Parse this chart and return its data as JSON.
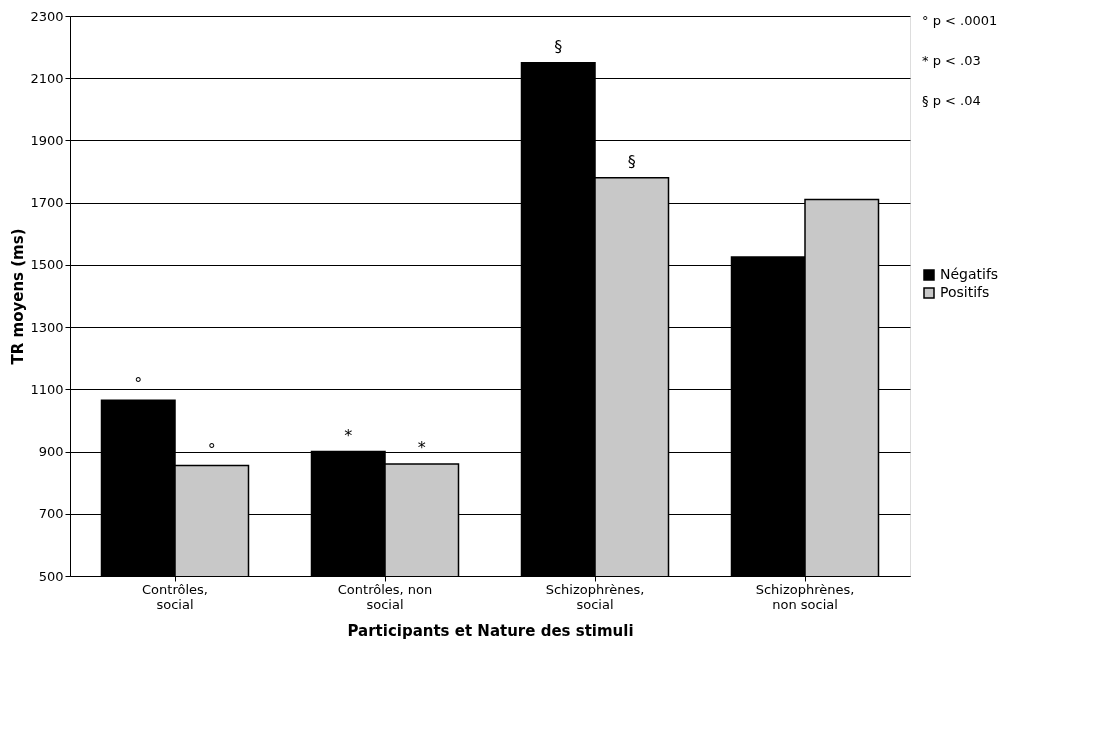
{
  "chart_data": {
    "type": "bar",
    "xlabel": "Participants et Nature des stimuli",
    "ylabel": "TR moyens (ms)",
    "categories": [
      "Contrôles, social",
      "Contrôles, non social",
      "Schizophrènes, social",
      "Schizophrènes, non social"
    ],
    "series": [
      {
        "name": "Négatifs",
        "color": "#000000",
        "values": [
          1065,
          900,
          2150,
          1525
        ]
      },
      {
        "name": "Positifs",
        "color": "#c8c8c8",
        "values": [
          855,
          860,
          1780,
          1710
        ]
      }
    ],
    "ylim": [
      500,
      2300
    ],
    "yticks": [
      500,
      700,
      900,
      1100,
      1300,
      1500,
      1700,
      1900,
      2100,
      2300
    ],
    "grid": "y",
    "legend": "right",
    "annotations": [
      {
        "text": "°",
        "x": "Contrôles, social",
        "y": 1065
      },
      {
        "text": "°",
        "x": "Contrôles, social",
        "y": 855
      },
      {
        "text": "*",
        "x": "Contrôles, non social",
        "y": 900
      },
      {
        "text": "*",
        "x": "Contrôles, non social",
        "y": 860
      },
      {
        "text": "§",
        "x": "Schizophrènes, social",
        "y": 2150
      },
      {
        "text": "§",
        "x": "Schizophrènes, social",
        "y": 1780
      },
      "° p < .0001",
      "* p < .03",
      "§ p < .04"
    ]
  }
}
